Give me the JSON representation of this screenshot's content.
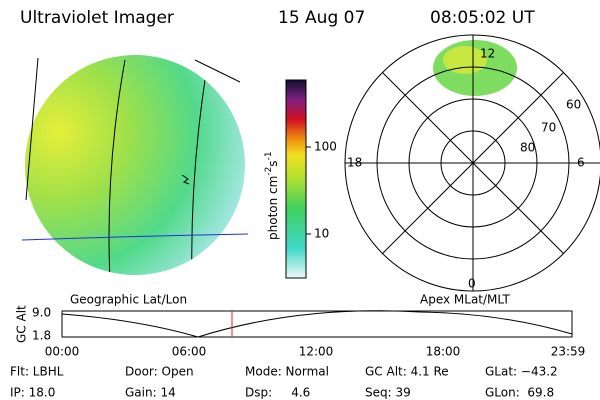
{
  "header": {
    "instrument": "Ultraviolet Imager",
    "date": "15 Aug 07",
    "time": "08:05:02 UT"
  },
  "colorbar": {
    "ticks": [
      "100",
      "10"
    ],
    "unit": {
      "base": "photon cm",
      "exp1": "-2",
      "mid": "s",
      "exp2": "-1"
    }
  },
  "polar": {
    "lat_labels": [
      "60",
      "70",
      "80"
    ],
    "mlt_labels": [
      "12",
      "18",
      "6",
      "0"
    ]
  },
  "panels": {
    "left": "Geographic Lat/Lon",
    "right": "Apex MLat/MLT"
  },
  "altitude": {
    "label": "GC Alt",
    "yticks": [
      "9.0",
      "1.8"
    ],
    "xticks": [
      "00:00",
      "06:00",
      "12:00",
      "18:00",
      "23:59"
    ]
  },
  "footer": {
    "rows": [
      [
        "Flt: LBHL",
        "Door: Open",
        "Mode: Normal",
        "GC Alt: 4.1 Re",
        "GLat: −43.2"
      ],
      [
        "IP: 18.0",
        "Gain: 14",
        "Dsp:     4.6",
        "Seq: 39",
        "GLon:  69.8"
      ]
    ]
  }
}
